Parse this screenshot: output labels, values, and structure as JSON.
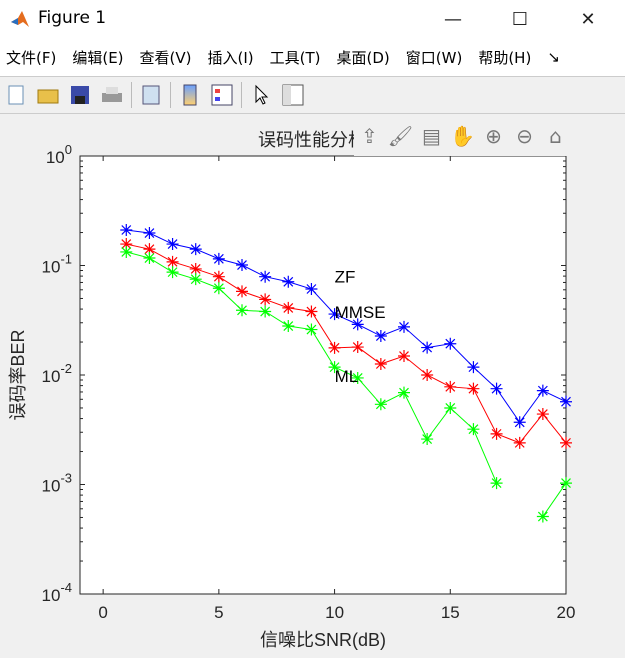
{
  "window": {
    "title": "Figure 1",
    "minimize": "—",
    "maximize": "☐",
    "close": "✕"
  },
  "menu": [
    "文件(F)",
    "编辑(E)",
    "查看(V)",
    "插入(I)",
    "工具(T)",
    "桌面(D)",
    "窗口(W)",
    "帮助(H)"
  ],
  "menu_overflow": "↘",
  "toolbar": [
    "new-figure-icon",
    "open-icon",
    "save-icon",
    "print-icon",
    "link-icon",
    "colorbar-icon",
    "legend-icon",
    "pointer-icon",
    "property-editor-icon"
  ],
  "axes_toolbar": [
    "export-icon",
    "brush-icon",
    "data-tip-icon",
    "pan-icon",
    "zoom-in-icon",
    "zoom-out-icon",
    "home-icon"
  ],
  "chart_data": {
    "type": "line",
    "title": "误码性能分析",
    "xlabel": "信噪比SNR(dB)",
    "ylabel": "误码率BER",
    "xlim": [
      -1,
      20
    ],
    "ylim": [
      0.0001,
      1
    ],
    "yscale": "log",
    "grid": false,
    "xticks": [
      "0",
      "5",
      "10",
      "15",
      "20"
    ],
    "yticks": [
      "10^0",
      "10^-1",
      "10^-2",
      "10^-3",
      "10^-4"
    ],
    "marker": "*",
    "x": [
      1,
      2,
      3,
      4,
      5,
      6,
      7,
      8,
      9,
      10,
      11,
      12,
      13,
      14,
      15,
      16,
      17,
      18,
      19,
      20
    ],
    "series": [
      {
        "label": "ZF",
        "color": "#0000ff",
        "values": [
          0.211,
          0.198,
          0.157,
          0.141,
          0.115,
          0.101,
          0.079,
          0.071,
          0.061,
          0.036,
          0.029,
          0.0227,
          0.0275,
          0.0178,
          0.0193,
          0.0118,
          0.0075,
          0.0037,
          0.0072,
          0.0057
        ]
      },
      {
        "label": "MMSE",
        "color": "#ff0000",
        "values": [
          0.157,
          0.141,
          0.108,
          0.093,
          0.079,
          0.058,
          0.049,
          0.041,
          0.038,
          0.0177,
          0.018,
          0.0126,
          0.0149,
          0.01,
          0.0078,
          0.0075,
          0.0029,
          0.0024,
          0.0044,
          0.0024
        ]
      },
      {
        "label": "ML",
        "color": "#00ff00",
        "values": [
          0.133,
          0.117,
          0.087,
          0.075,
          0.062,
          0.039,
          0.038,
          0.028,
          0.026,
          0.0118,
          0.0094,
          0.0054,
          0.0069,
          0.0026,
          0.005,
          0.0032,
          0.00103,
          null,
          0.00051,
          0.00103
        ]
      }
    ],
    "annotations": [
      {
        "text": "ZF",
        "x": 10,
        "y": 0.079
      },
      {
        "text": "MMSE",
        "x": 10,
        "y": 0.0375
      },
      {
        "text": "ML",
        "x": 10,
        "y": 0.0098
      }
    ]
  }
}
